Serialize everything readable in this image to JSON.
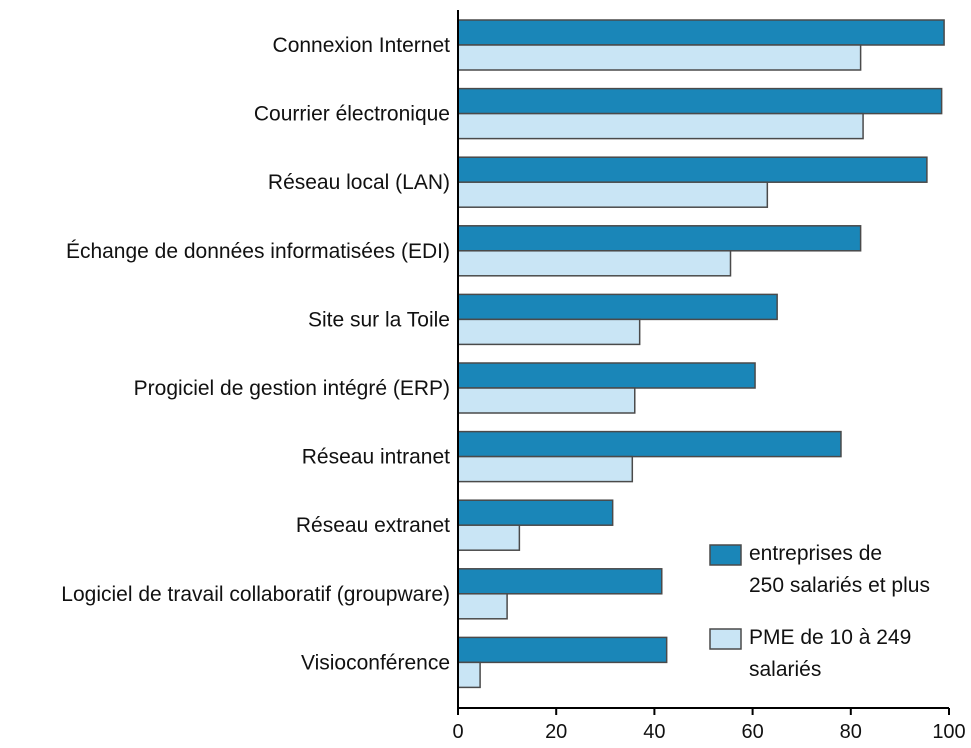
{
  "chart_data": {
    "type": "bar",
    "orientation": "horizontal",
    "categories": [
      "Connexion Internet",
      "Courrier électronique",
      "Réseau local (LAN)",
      "Échange de données informatisées (EDI)",
      "Site sur la Toile",
      "Progiciel de gestion intégré (ERP)",
      "Réseau intranet",
      "Réseau extranet",
      "Logiciel de travail collaboratif (groupware)",
      "Visioconférence"
    ],
    "series": [
      {
        "name": "entreprises de 250 salariés et plus",
        "legend_lines": [
          "entreprises de",
          "250 salariés et plus"
        ],
        "color": "#1a86b8",
        "values": [
          99,
          98.5,
          95.5,
          82,
          65,
          60.5,
          78,
          31.5,
          41.5,
          42.5
        ]
      },
      {
        "name": "PME de 10 à 249 salariés",
        "legend_lines": [
          "PME de 10 à 249",
          "salariés"
        ],
        "color": "#c9e5f5",
        "values": [
          82,
          82.5,
          63,
          55.5,
          37,
          36,
          35.5,
          12.5,
          10,
          4.5
        ]
      }
    ],
    "xlim": [
      0,
      100
    ],
    "xticks": [
      0,
      20,
      40,
      60,
      80,
      100
    ],
    "legend_position": "bottom-right",
    "grid": false
  }
}
